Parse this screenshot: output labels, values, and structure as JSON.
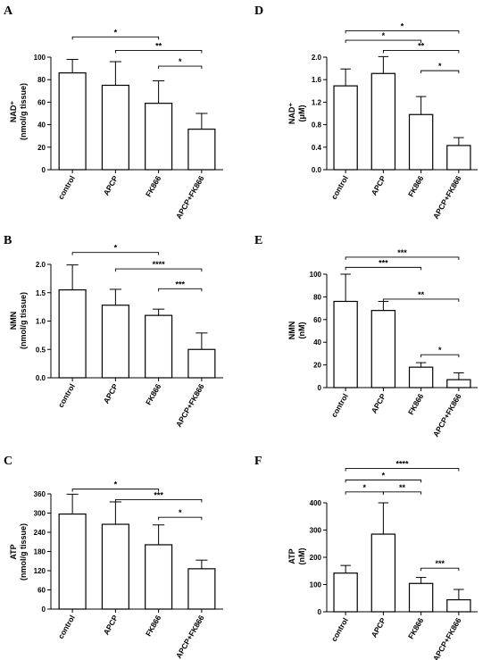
{
  "chart_data": [
    {
      "panel": "A",
      "type": "bar",
      "categories": [
        "control",
        "APCP",
        "FK866",
        "APCP+FK866"
      ],
      "values": [
        86,
        75,
        59,
        36
      ],
      "errors": [
        12,
        21,
        20,
        14
      ],
      "ylabel_lines": [
        "NAD⁺",
        "(nmol/g tissue)"
      ],
      "ylim": [
        0,
        100
      ],
      "yticks": [
        0,
        20,
        40,
        60,
        80,
        100
      ],
      "tick_labels": [
        "0",
        "20",
        "40",
        "60",
        "80",
        "100"
      ],
      "brackets": [
        {
          "from": 0,
          "to": 2,
          "label": "*",
          "y": 118
        },
        {
          "from": 1,
          "to": 3,
          "label": "**",
          "y": 106
        },
        {
          "from": 2,
          "to": 3,
          "label": "*",
          "y": 92
        }
      ]
    },
    {
      "panel": "D",
      "type": "bar",
      "categories": [
        "control",
        "APCP",
        "FK866",
        "APCP+FK866"
      ],
      "values": [
        1.49,
        1.71,
        0.98,
        0.43
      ],
      "errors": [
        0.3,
        0.3,
        0.32,
        0.14
      ],
      "ylabel_lines": [
        "NAD⁺",
        "(μM)"
      ],
      "ylim": [
        0,
        2.0
      ],
      "yticks": [
        0,
        0.4,
        0.8,
        1.2,
        1.6,
        2.0
      ],
      "tick_labels": [
        "0.0",
        "0.4",
        "0.8",
        "1.2",
        "1.6",
        "2.0"
      ],
      "brackets": [
        {
          "from": 0,
          "to": 3,
          "label": "*",
          "y": 2.47
        },
        {
          "from": 0,
          "to": 2,
          "label": "*",
          "y": 2.3
        },
        {
          "from": 1,
          "to": 3,
          "label": "**",
          "y": 2.12
        },
        {
          "from": 2,
          "to": 3,
          "label": "*",
          "y": 1.76
        }
      ]
    },
    {
      "panel": "B",
      "type": "bar",
      "categories": [
        "control",
        "APCP",
        "FK866",
        "APCP+FK866"
      ],
      "values": [
        1.55,
        1.28,
        1.1,
        0.5
      ],
      "errors": [
        0.44,
        0.28,
        0.11,
        0.29
      ],
      "ylabel_lines": [
        "NMN",
        "(nmol/g tissue)"
      ],
      "ylim": [
        0,
        2.0
      ],
      "yticks": [
        0,
        0.5,
        1.0,
        1.5,
        2.0
      ],
      "tick_labels": [
        "0.0",
        "0.5",
        "1.0",
        "1.5",
        "2.0"
      ],
      "brackets": [
        {
          "from": 0,
          "to": 2,
          "label": "*",
          "y": 2.21
        },
        {
          "from": 1,
          "to": 3,
          "label": "****",
          "y": 1.92
        },
        {
          "from": 2,
          "to": 3,
          "label": "***",
          "y": 1.57
        }
      ]
    },
    {
      "panel": "E",
      "type": "bar",
      "categories": [
        "control",
        "APCP",
        "FK866",
        "APCP+FK866"
      ],
      "values": [
        76,
        68,
        18,
        7
      ],
      "errors": [
        24,
        8,
        4,
        6
      ],
      "ylabel_lines": [
        "NMN",
        "(nM)"
      ],
      "ylim": [
        0,
        100
      ],
      "yticks": [
        0,
        20,
        40,
        60,
        80,
        100
      ],
      "tick_labels": [
        "0",
        "20",
        "40",
        "60",
        "80",
        "100"
      ],
      "brackets": [
        {
          "from": 0,
          "to": 3,
          "label": "***",
          "y": 115
        },
        {
          "from": 0,
          "to": 2,
          "label": "***",
          "y": 106
        },
        {
          "from": 1,
          "to": 3,
          "label": "**",
          "y": 78
        },
        {
          "from": 2,
          "to": 3,
          "label": "*",
          "y": 29
        }
      ]
    },
    {
      "panel": "C",
      "type": "bar",
      "categories": [
        "control",
        "APCP",
        "FK866",
        "APCP+FK866"
      ],
      "values": [
        297,
        265,
        201,
        126
      ],
      "errors": [
        62,
        70,
        62,
        27
      ],
      "ylabel_lines": [
        "ATP",
        "(nmol/g tissue)"
      ],
      "ylim": [
        0,
        360
      ],
      "yticks": [
        0,
        60,
        120,
        180,
        240,
        300,
        360
      ],
      "tick_labels": [
        "0",
        "60",
        "120",
        "180",
        "240",
        "300",
        "360"
      ],
      "brackets": [
        {
          "from": 0,
          "to": 2,
          "label": "*",
          "y": 375
        },
        {
          "from": 1,
          "to": 3,
          "label": "***",
          "y": 342
        },
        {
          "from": 2,
          "to": 3,
          "label": "*",
          "y": 287
        }
      ]
    },
    {
      "panel": "F",
      "type": "bar",
      "categories": [
        "control",
        "APCP",
        "FK866",
        "APCP+FK866"
      ],
      "values": [
        142,
        285,
        104,
        44
      ],
      "errors": [
        28,
        115,
        22,
        38
      ],
      "ylabel_lines": [
        "ATP",
        "(nM)"
      ],
      "ylim": [
        0,
        400
      ],
      "yticks": [
        0,
        100,
        200,
        300,
        400
      ],
      "tick_labels": [
        "0",
        "100",
        "200",
        "300",
        "400"
      ],
      "brackets": [
        {
          "from": 0,
          "to": 3,
          "label": "****",
          "y": 526
        },
        {
          "from": 0,
          "to": 2,
          "label": "*",
          "y": 484
        },
        {
          "from": 0,
          "to": 1,
          "label": "*",
          "y": 440
        },
        {
          "from": 1,
          "to": 2,
          "label": "**",
          "y": 440
        },
        {
          "from": 2,
          "to": 3,
          "label": "***",
          "y": 160
        }
      ]
    }
  ]
}
